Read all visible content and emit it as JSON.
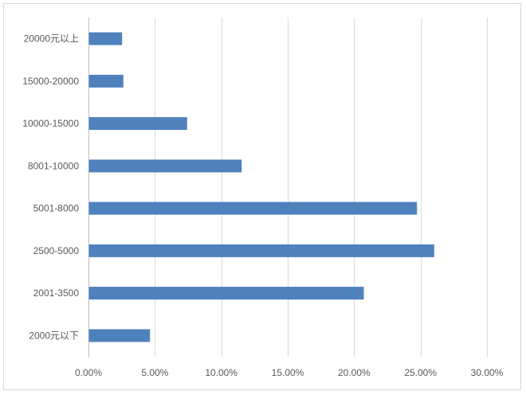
{
  "chart_data": {
    "type": "bar",
    "orientation": "horizontal",
    "title": "",
    "xlabel": "",
    "ylabel": "",
    "categories": [
      "20000元以上",
      "15000-20000",
      "10000-15000",
      "8001-10000",
      "5001-8000",
      "2500-5000",
      "2001-3500",
      "2000元以下"
    ],
    "values": [
      2.5,
      2.6,
      7.4,
      11.5,
      24.7,
      26.0,
      20.7,
      4.6
    ],
    "xlim": [
      0,
      30
    ],
    "xticks": [
      "0.00%",
      "5.00%",
      "10.00%",
      "15.00%",
      "20.00%",
      "25.00%",
      "30.00%"
    ],
    "xtick_values": [
      0,
      5,
      10,
      15,
      20,
      25,
      30
    ],
    "grid": "vertical",
    "legend": "none",
    "bar_color": "#4f81bd"
  }
}
